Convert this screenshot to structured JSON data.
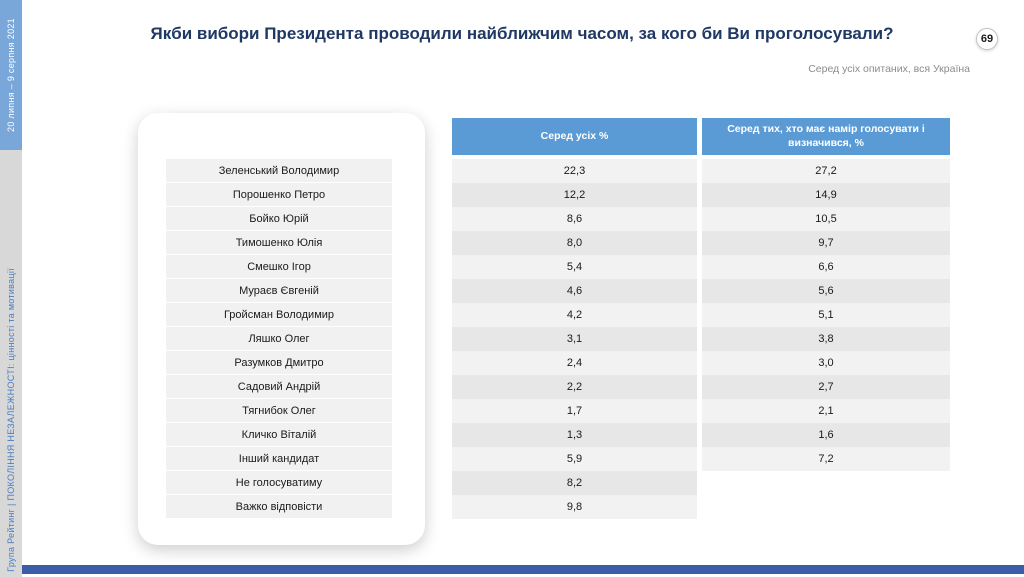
{
  "sidebar": {
    "date_range": "20 липня – 9 серпня 2021",
    "footer_text": "Група Рейтинг | ПОКОЛІННЯ НЕЗАЛЕЖНОСТІ: цінності та мотивації"
  },
  "header": {
    "title": "Якби вибори Президента проводили найближчим часом, за кого би Ви проголосували?",
    "page_number": "69",
    "subtitle": "Серед усіх опитаних, вся Україна"
  },
  "table": {
    "columns": [
      "Серед усіх %",
      "Серед тих, хто має намір голосувати і визначився, %"
    ],
    "rows": [
      {
        "name": "Зеленський Володимир",
        "all": "22,3",
        "decided": "27,2"
      },
      {
        "name": "Порошенко Петро",
        "all": "12,2",
        "decided": "14,9"
      },
      {
        "name": "Бойко Юрій",
        "all": "8,6",
        "decided": "10,5"
      },
      {
        "name": "Тимошенко Юлія",
        "all": "8,0",
        "decided": "9,7"
      },
      {
        "name": "Смешко Ігор",
        "all": "5,4",
        "decided": "6,6"
      },
      {
        "name": "Мураєв Євгеній",
        "all": "4,6",
        "decided": "5,6"
      },
      {
        "name": "Гройсман Володимир",
        "all": "4,2",
        "decided": "5,1"
      },
      {
        "name": "Ляшко Олег",
        "all": "3,1",
        "decided": "3,8"
      },
      {
        "name": "Разумков Дмитро",
        "all": "2,4",
        "decided": "3,0"
      },
      {
        "name": "Садовий Андрій",
        "all": "2,2",
        "decided": "2,7"
      },
      {
        "name": "Тягнибок Олег",
        "all": "1,7",
        "decided": "2,1"
      },
      {
        "name": "Кличко Віталій",
        "all": "1,3",
        "decided": "1,6"
      },
      {
        "name": "Інший кандидат",
        "all": "5,9",
        "decided": "7,2"
      },
      {
        "name": "Не голосуватиму",
        "all": "8,2",
        "decided": ""
      },
      {
        "name": "Важко відповісти",
        "all": "9,8",
        "decided": ""
      }
    ]
  },
  "colors": {
    "header_blue": "#5B9BD5",
    "title_navy": "#1F3864",
    "sidebar_blue": "#79A7DA",
    "sidebar_gray": "#D8D8D8",
    "bottom_bar": "#3D5CA8",
    "row_light": "#F2F2F2",
    "row_dark": "#E7E7E7"
  },
  "chart_data": {
    "type": "table",
    "title": "Якби вибори Президента проводили найближчим часом, за кого би Ви проголосували?",
    "subtitle": "Серед усіх опитаних, вся Україна",
    "columns": [
      "Серед усіх %",
      "Серед тих, хто має намір голосувати і визначився, %"
    ],
    "categories": [
      "Зеленський Володимир",
      "Порошенко Петро",
      "Бойко Юрій",
      "Тимошенко Юлія",
      "Смешко Ігор",
      "Мураєв Євгеній",
      "Гройсман Володимир",
      "Ляшко Олег",
      "Разумков Дмитро",
      "Садовий Андрій",
      "Тягнибок Олег",
      "Кличко Віталій",
      "Інший кандидат",
      "Не голосуватиму",
      "Важко відповісти"
    ],
    "series": [
      {
        "name": "Серед усіх %",
        "values": [
          22.3,
          12.2,
          8.6,
          8.0,
          5.4,
          4.6,
          4.2,
          3.1,
          2.4,
          2.2,
          1.7,
          1.3,
          5.9,
          8.2,
          9.8
        ]
      },
      {
        "name": "Серед тих, хто має намір голосувати і визначився, %",
        "values": [
          27.2,
          14.9,
          10.5,
          9.7,
          6.6,
          5.6,
          5.1,
          3.8,
          3.0,
          2.7,
          2.1,
          1.6,
          7.2,
          null,
          null
        ]
      }
    ]
  }
}
